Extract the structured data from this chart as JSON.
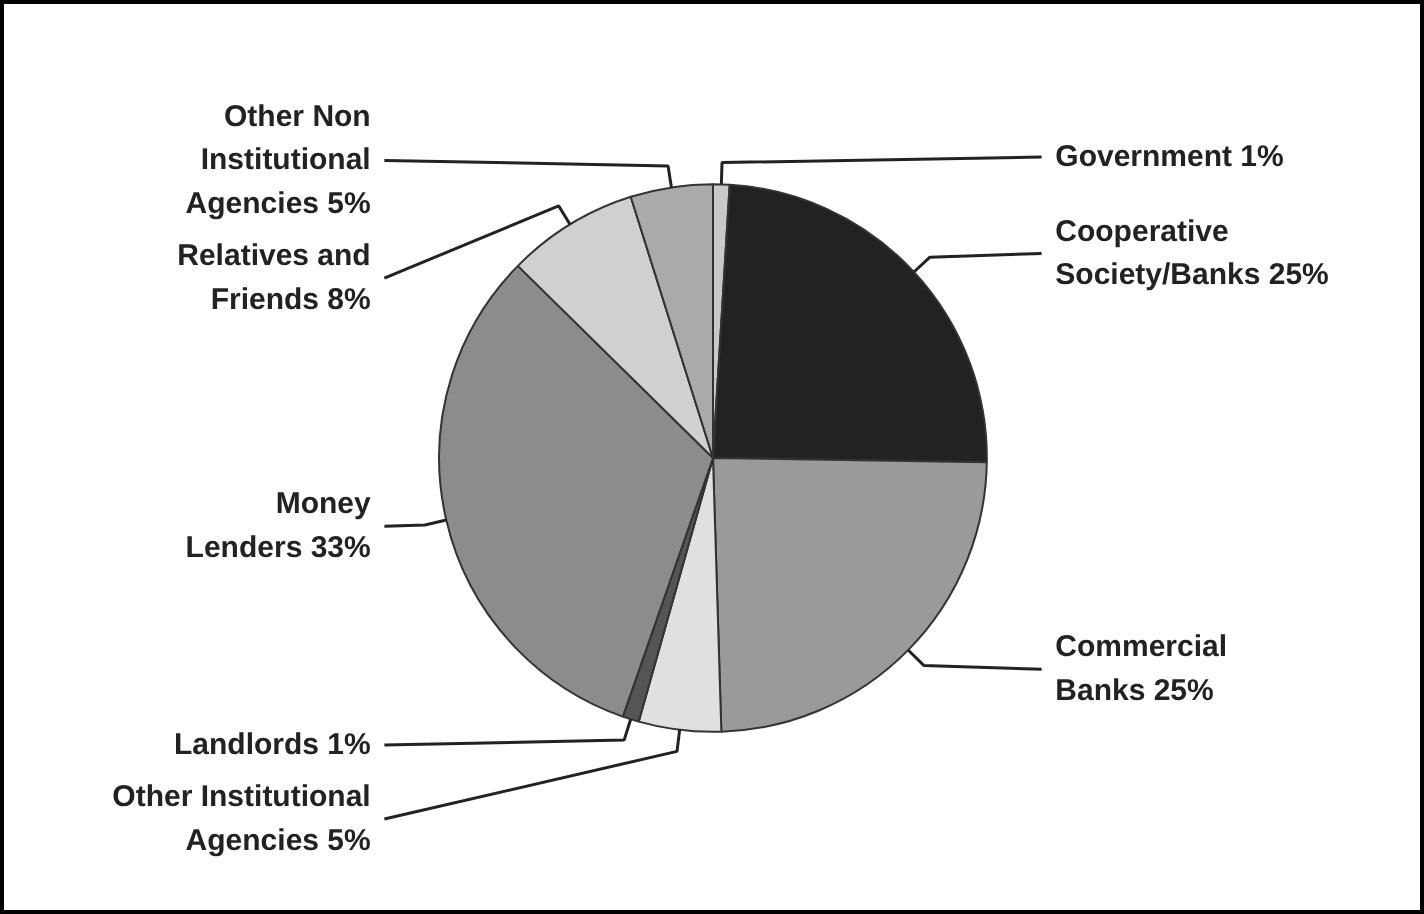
{
  "chart_data": {
    "type": "pie",
    "categories": [
      "Government",
      "Cooperative Society/Banks",
      "Commercial Banks",
      "Other Institutional Agencies",
      "Landlords",
      "Money Lenders",
      "Relatives and Friends",
      "Other Non Institutional Agencies"
    ],
    "values": [
      1,
      25,
      25,
      5,
      1,
      33,
      8,
      5
    ],
    "value_labels": [
      "1%",
      "25%",
      "25%",
      "5%",
      "1%",
      "33%",
      "8%",
      "5%"
    ],
    "colors": [
      "#c8c8c8",
      "#222222",
      "#9a9a9a",
      "#e0e0e0",
      "#555555",
      "#8c8c8c",
      "#d0d0d0",
      "#aaaaaa"
    ],
    "legend": false
  }
}
